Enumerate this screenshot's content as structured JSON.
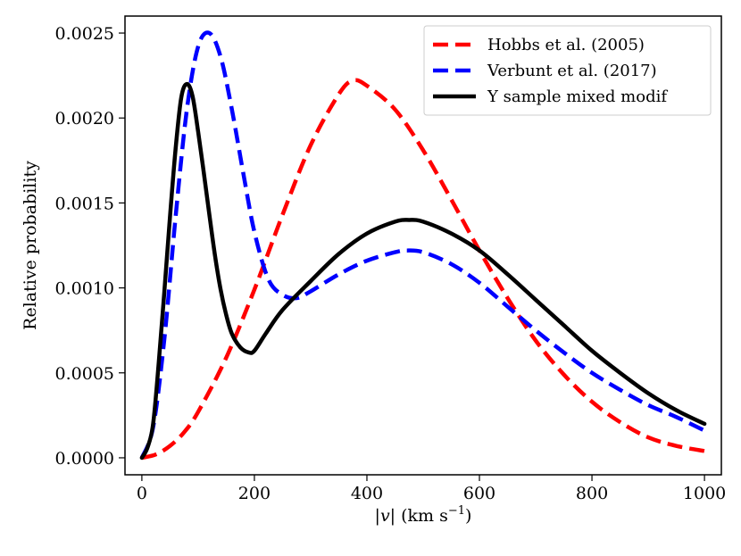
{
  "chart_data": {
    "type": "line",
    "title": "",
    "xlabel_prefix": "|",
    "xlabel_var": "v",
    "xlabel_mid": "| (km s",
    "xlabel_sup": "−1",
    "xlabel_suffix": ")",
    "ylabel": "Relative probability",
    "xlim": [
      -30,
      1030
    ],
    "ylim": [
      -0.0001,
      0.0026
    ],
    "xticks": [
      0,
      200,
      400,
      600,
      800,
      1000
    ],
    "xtick_labels": [
      "0",
      "200",
      "400",
      "600",
      "800",
      "1000"
    ],
    "yticks": [
      0,
      0.0005,
      0.001,
      0.0015,
      0.002,
      0.0025
    ],
    "ytick_labels": [
      "0.0000",
      "0.0005",
      "0.0010",
      "0.0015",
      "0.0020",
      "0.0025"
    ],
    "legend_position": "top-right",
    "series": [
      {
        "name": "Hobbs et al. (2005)",
        "color": "#ff0000",
        "style": "dashed",
        "x": [
          0,
          25,
          50,
          75,
          100,
          150,
          200,
          250,
          300,
          350,
          375,
          400,
          450,
          500,
          550,
          600,
          650,
          700,
          750,
          800,
          850,
          900,
          950,
          1000
        ],
        "y": [
          0,
          2e-05,
          7e-05,
          0.00015,
          0.00027,
          0.00059,
          0.00099,
          0.00143,
          0.00184,
          0.00214,
          0.00222,
          0.00219,
          0.00205,
          0.00181,
          0.00152,
          0.00122,
          0.00094,
          0.00069,
          0.00049,
          0.00033,
          0.00021,
          0.00012,
          7e-05,
          4e-05
        ]
      },
      {
        "name": "Verbunt et al. (2017)",
        "color": "#0000ff",
        "style": "dashed",
        "x": [
          0,
          20,
          40,
          60,
          80,
          100,
          120,
          140,
          160,
          180,
          200,
          225,
          250,
          275,
          300,
          350,
          400,
          450,
          470,
          500,
          550,
          600,
          650,
          700,
          750,
          800,
          850,
          900,
          950,
          1000
        ],
        "y": [
          0,
          0.00018,
          0.0007,
          0.00142,
          0.00205,
          0.00242,
          0.0025,
          0.00236,
          0.00205,
          0.00168,
          0.00133,
          0.00105,
          0.00096,
          0.00094,
          0.00098,
          0.00108,
          0.00116,
          0.00121,
          0.00122,
          0.00121,
          0.00114,
          0.00103,
          0.00089,
          0.00075,
          0.00062,
          0.0005,
          0.0004,
          0.00031,
          0.00024,
          0.00016
        ]
      },
      {
        "name": "Y sample mixed modif",
        "color": "#000000",
        "style": "solid",
        "x": [
          0,
          10,
          20,
          30,
          40,
          50,
          60,
          70,
          80,
          90,
          100,
          110,
          120,
          130,
          140,
          150,
          160,
          175,
          190,
          200,
          220,
          250,
          300,
          350,
          400,
          450,
          475,
          500,
          550,
          600,
          650,
          700,
          750,
          800,
          850,
          900,
          950,
          1000
        ],
        "y": [
          0,
          6e-05,
          0.0002,
          0.00056,
          0.00098,
          0.00142,
          0.00182,
          0.00212,
          0.0022,
          0.00213,
          0.00192,
          0.00168,
          0.00143,
          0.00119,
          0.00099,
          0.00084,
          0.00073,
          0.00065,
          0.00062,
          0.00063,
          0.00073,
          0.00087,
          0.00104,
          0.0012,
          0.00132,
          0.00139,
          0.0014,
          0.00139,
          0.00132,
          0.00122,
          0.00108,
          0.00093,
          0.00078,
          0.00063,
          0.0005,
          0.00038,
          0.00028,
          0.0002
        ]
      }
    ]
  }
}
